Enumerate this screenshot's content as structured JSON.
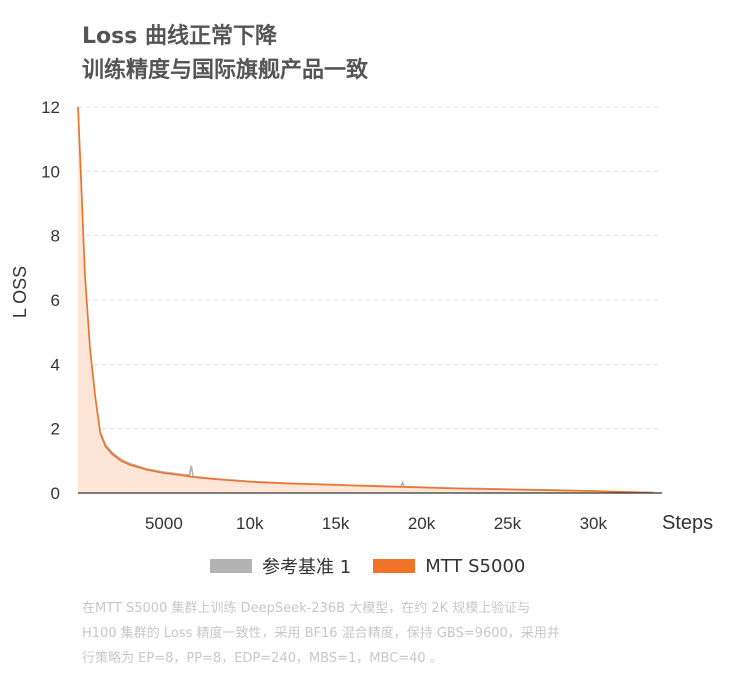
{
  "title": {
    "line1": "Loss 曲线正常下降",
    "line2": "训练精度与国际旗舰产品一致"
  },
  "chart_data": {
    "type": "line",
    "ylabel": "L OSS",
    "xlabel": "Steps",
    "ylim": [
      0,
      12
    ],
    "xlim": [
      0,
      34000
    ],
    "yticks": [
      0,
      2,
      4,
      6,
      8,
      10,
      12
    ],
    "xticks": [
      {
        "value": 5000,
        "label": "5000"
      },
      {
        "value": 10000,
        "label": "10k"
      },
      {
        "value": 15000,
        "label": "15k"
      },
      {
        "value": 20000,
        "label": "20k"
      },
      {
        "value": 25000,
        "label": "25k"
      },
      {
        "value": 30000,
        "label": "30k"
      }
    ],
    "grid": "horizontal-dashed",
    "series": [
      {
        "name": "参考基准 1",
        "color": "#b3b3b3",
        "x": [
          0,
          200,
          400,
          700,
          1000,
          1300,
          1600,
          2000,
          2500,
          3000,
          4000,
          5000,
          6000,
          6500,
          6600,
          6700,
          7000,
          8000,
          9000,
          10000,
          12000,
          15000,
          16000,
          17000,
          18000,
          18800,
          18900,
          19000,
          20000,
          22000,
          25000,
          26000,
          28000,
          30000,
          32000,
          33500
        ],
        "values": [
          12.0,
          9.5,
          6.8,
          4.5,
          3.0,
          1.9,
          1.5,
          1.25,
          1.05,
          0.92,
          0.75,
          0.65,
          0.58,
          0.56,
          0.85,
          0.5,
          0.5,
          0.44,
          0.4,
          0.36,
          0.31,
          0.26,
          0.24,
          0.23,
          0.21,
          0.2,
          0.32,
          0.2,
          0.18,
          0.15,
          0.12,
          0.11,
          0.09,
          0.06,
          0.03,
          0.01
        ]
      },
      {
        "name": "MTT S5000",
        "color": "#f07328",
        "x": [
          0,
          200,
          400,
          700,
          1000,
          1300,
          1600,
          2000,
          2500,
          3000,
          4000,
          5000,
          6000,
          7000,
          8000,
          9000,
          10000,
          12000,
          15000,
          18000,
          20000,
          22000,
          25000,
          28000,
          30000,
          32000,
          33500
        ],
        "values": [
          12.0,
          9.5,
          6.8,
          4.5,
          3.0,
          1.85,
          1.45,
          1.2,
          1.0,
          0.88,
          0.72,
          0.62,
          0.55,
          0.48,
          0.43,
          0.39,
          0.35,
          0.3,
          0.25,
          0.2,
          0.17,
          0.14,
          0.11,
          0.08,
          0.06,
          0.03,
          0.01
        ]
      }
    ]
  },
  "legend": {
    "baseline_label": "参考基准 1",
    "baseline_color": "#b3b3b3",
    "mtt_label": "MTT S5000",
    "mtt_color": "#f07328"
  },
  "note": {
    "line1": "在MTT S5000 集群上训练 DeepSeek-236B 大模型，在约 2K 规模上验证与",
    "line2": "H100 集群的 Loss 精度一致性，采用 BF16 混合精度，保持 GBS=9600，采用并",
    "line3": "行策略为 EP=8，PP=8，EDP=240，MBS=1，MBC=40 。"
  }
}
